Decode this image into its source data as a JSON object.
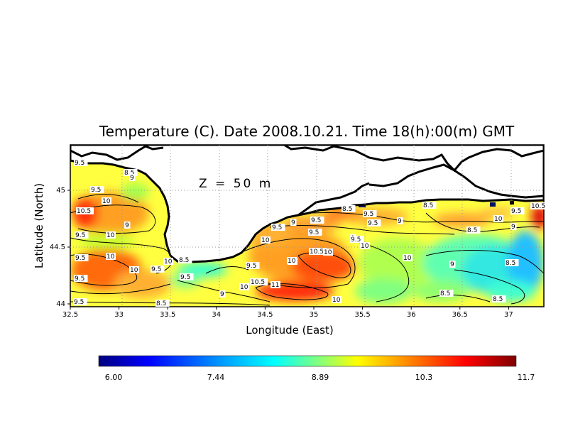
{
  "title": "Temperature (C). Date 2008.10.21. Time 18(h):00(m) GMT",
  "annotation": "Z = 50 m",
  "xlabel": "Longitude (East)",
  "ylabel": "Latitude (North)",
  "x_ticks": [
    "32.5",
    "33",
    "33.5",
    "34",
    "34.5",
    "35",
    "35.5",
    "36",
    "36.5",
    "37"
  ],
  "y_ticks": [
    "44",
    "44.5",
    "45"
  ],
  "colorbar": {
    "ticks": [
      "6.00",
      "7.44",
      "8.89",
      "10.3",
      "11.7"
    ],
    "colors": [
      "#00007f",
      "#0000ff",
      "#007fff",
      "#00ffff",
      "#7fff7f",
      "#ffff00",
      "#ff7f00",
      "#ff0000",
      "#7f0000"
    ]
  },
  "contour_labels": [
    "9.5",
    "8.5",
    "9",
    "9.5",
    "10",
    "10.5",
    "9",
    "9.5",
    "10",
    "9.5",
    "10",
    "9.5",
    "10",
    "8.5",
    "9.5",
    "10",
    "9.5",
    "8.5",
    "9.5",
    "10",
    "9",
    "10",
    "10.5",
    "11",
    "9.5",
    "10",
    "9.5",
    "10.5",
    "10",
    "10",
    "9.5",
    "9",
    "10",
    "8.5",
    "9.5",
    "9",
    "10",
    "9.5",
    "9",
    "8.5",
    "9.5",
    "9.5",
    "10",
    "8.5",
    "8.5",
    "9",
    "8.5",
    "8.5",
    "9",
    "9.5",
    "10",
    "10.5"
  ],
  "chart_data": {
    "type": "heatmap",
    "title": "Temperature (C). Date 2008.10.21. Time 18(h):00(m) GMT",
    "xlabel": "Longitude (East)",
    "ylabel": "Latitude (North)",
    "xlim": [
      32.5,
      37.3
    ],
    "ylim": [
      44.0,
      45.3
    ],
    "value_range": [
      6.0,
      11.7
    ],
    "depth": "50 m",
    "hotspots": [
      {
        "lon": 34.75,
        "lat": 44.1,
        "value": 11
      },
      {
        "lon": 35.1,
        "lat": 44.3,
        "value": 10.5
      },
      {
        "lon": 32.8,
        "lat": 44.3,
        "value": 10.5
      },
      {
        "lon": 32.55,
        "lat": 44.85,
        "value": 10.5
      },
      {
        "lon": 37.25,
        "lat": 44.85,
        "value": 10.5
      }
    ],
    "coldspots": [
      {
        "lon": 36.7,
        "lat": 44.25,
        "value": 8.5
      },
      {
        "lon": 37.1,
        "lat": 44.3,
        "value": 8.5
      }
    ]
  }
}
